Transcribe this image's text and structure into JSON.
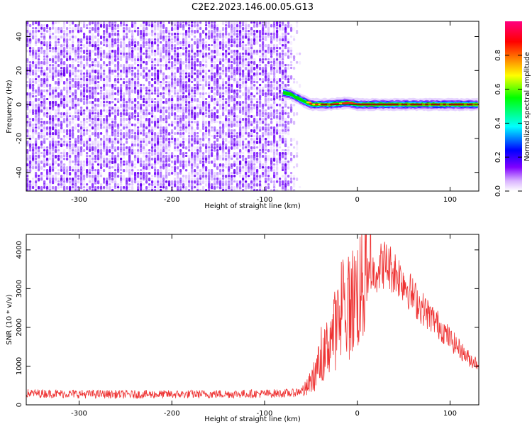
{
  "title": "C2E2.2023.146.00.05.G13",
  "chart_data": [
    {
      "type": "heatmap",
      "xlabel": "Height of straight line (km)",
      "ylabel": "Frequency (Hz)",
      "xlim": [
        -357,
        131
      ],
      "ylim": [
        -51,
        49
      ],
      "xticks": [
        -300,
        -200,
        -100,
        0,
        100
      ],
      "yticks": [
        -40,
        -20,
        0,
        20,
        40
      ],
      "colorbar": {
        "label": "Normalized spectral amplitude",
        "range": [
          0,
          1
        ],
        "ticks": [
          0.0,
          0.2,
          0.4,
          0.6,
          0.8
        ],
        "colors": [
          "#ffffff",
          "#d9b3ff",
          "#8000ff",
          "#0000ff",
          "#00ffff",
          "#00ff00",
          "#ffff00",
          "#ff8000",
          "#ff0000",
          "#ff0080"
        ]
      },
      "features": {
        "noise_region_x": [
          -357,
          -78
        ],
        "noise_fade_x": [
          -78,
          -62
        ],
        "signal_track": [
          {
            "x": -80,
            "y": 7
          },
          {
            "x": -72,
            "y": 6
          },
          {
            "x": -65,
            "y": 4
          },
          {
            "x": -58,
            "y": 2
          },
          {
            "x": -50,
            "y": 0
          },
          {
            "x": -30,
            "y": 0
          },
          {
            "x": -10,
            "y": 1
          },
          {
            "x": 0,
            "y": 0
          },
          {
            "x": 50,
            "y": 0
          },
          {
            "x": 100,
            "y": 0
          },
          {
            "x": 131,
            "y": 0
          }
        ]
      }
    },
    {
      "type": "line",
      "xlabel": "Height of straight line (km)",
      "ylabel": "SNR (10 * v/v)",
      "xlim": [
        -357,
        131
      ],
      "ylim": [
        0,
        4400
      ],
      "xticks": [
        -300,
        -200,
        -100,
        0,
        100
      ],
      "yticks": [
        0,
        1000,
        2000,
        3000,
        4000
      ],
      "series": [
        {
          "color": "#ee3333",
          "values": [
            {
              "x": -357,
              "y": 300
            },
            {
              "x": -300,
              "y": 280
            },
            {
              "x": -250,
              "y": 270
            },
            {
              "x": -200,
              "y": 270
            },
            {
              "x": -150,
              "y": 280
            },
            {
              "x": -100,
              "y": 290
            },
            {
              "x": -70,
              "y": 300
            },
            {
              "x": -55,
              "y": 400
            },
            {
              "x": -45,
              "y": 800
            },
            {
              "x": -40,
              "y": 1100
            },
            {
              "x": -35,
              "y": 1300
            },
            {
              "x": -30,
              "y": 1700
            },
            {
              "x": -25,
              "y": 1900
            },
            {
              "x": -20,
              "y": 2100
            },
            {
              "x": -15,
              "y": 2300
            },
            {
              "x": -10,
              "y": 2500
            },
            {
              "x": -5,
              "y": 2700
            },
            {
              "x": 0,
              "y": 2900
            },
            {
              "x": 10,
              "y": 3200
            },
            {
              "x": 20,
              "y": 3500
            },
            {
              "x": 30,
              "y": 3650
            },
            {
              "x": 40,
              "y": 3450
            },
            {
              "x": 50,
              "y": 3200
            },
            {
              "x": 60,
              "y": 2800
            },
            {
              "x": 70,
              "y": 2500
            },
            {
              "x": 80,
              "y": 2250
            },
            {
              "x": 90,
              "y": 2000
            },
            {
              "x": 100,
              "y": 1700
            },
            {
              "x": 110,
              "y": 1450
            },
            {
              "x": 120,
              "y": 1200
            },
            {
              "x": 131,
              "y": 1050
            }
          ]
        }
      ]
    }
  ]
}
